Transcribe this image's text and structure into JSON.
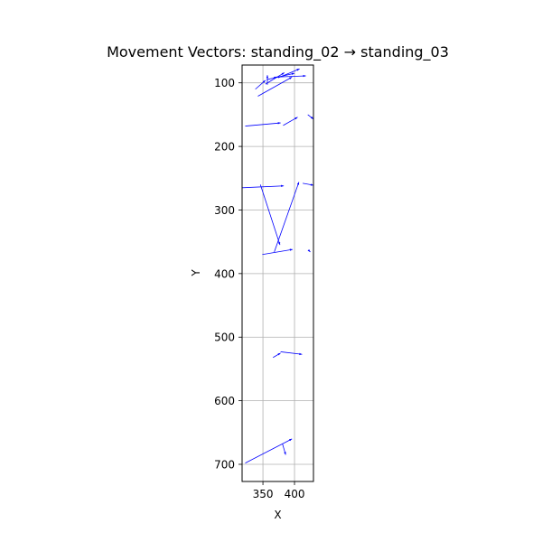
{
  "chart_data": {
    "type": "quiver",
    "title": "Movement Vectors: standing_02 → standing_03",
    "xlabel": "X",
    "ylabel": "Y",
    "xlim": [
      317,
      430
    ],
    "ylim": [
      727,
      72
    ],
    "y_inverted": true,
    "xticks": [
      350,
      400
    ],
    "yticks": [
      100,
      200,
      300,
      400,
      500,
      600,
      700
    ],
    "grid": true,
    "vector_color": "#0000ff",
    "vectors": [
      {
        "x0": 338,
        "y0": 110,
        "x1": 354,
        "y1": 96
      },
      {
        "x0": 354,
        "y0": 102,
        "x1": 384,
        "y1": 84
      },
      {
        "x0": 356,
        "y0": 95,
        "x1": 400,
        "y1": 85
      },
      {
        "x0": 367,
        "y0": 91,
        "x1": 418,
        "y1": 89
      },
      {
        "x0": 342,
        "y0": 121,
        "x1": 396,
        "y1": 91
      },
      {
        "x0": 357,
        "y0": 103,
        "x1": 357,
        "y1": 88
      },
      {
        "x0": 374,
        "y0": 92,
        "x1": 408,
        "y1": 78
      },
      {
        "x0": 322,
        "y0": 168,
        "x1": 378,
        "y1": 163
      },
      {
        "x0": 382,
        "y0": 167,
        "x1": 405,
        "y1": 154
      },
      {
        "x0": 421,
        "y0": 150,
        "x1": 430,
        "y1": 157
      },
      {
        "x0": 317,
        "y0": 265,
        "x1": 383,
        "y1": 262
      },
      {
        "x0": 346,
        "y0": 260,
        "x1": 377,
        "y1": 355
      },
      {
        "x0": 368,
        "y0": 366,
        "x1": 407,
        "y1": 256
      },
      {
        "x0": 413,
        "y0": 258,
        "x1": 430,
        "y1": 261
      },
      {
        "x0": 349,
        "y0": 370,
        "x1": 397,
        "y1": 362
      },
      {
        "x0": 422,
        "y0": 363,
        "x1": 425,
        "y1": 366
      },
      {
        "x0": 366,
        "y0": 532,
        "x1": 378,
        "y1": 525
      },
      {
        "x0": 378,
        "y0": 523,
        "x1": 412,
        "y1": 527
      },
      {
        "x0": 322,
        "y0": 698,
        "x1": 396,
        "y1": 660
      },
      {
        "x0": 381,
        "y0": 668,
        "x1": 386,
        "y1": 685
      }
    ]
  }
}
